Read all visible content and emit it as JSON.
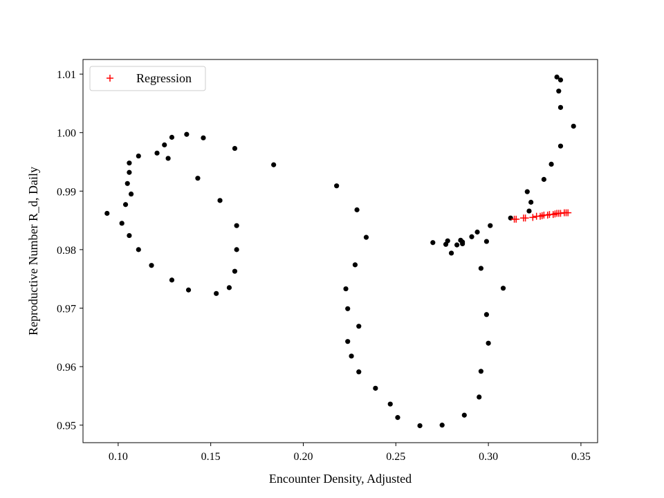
{
  "chart_data": {
    "type": "scatter",
    "title": "",
    "xlabel": "Encounter Density, Adjusted",
    "ylabel": "Reproductive Number R_d, Daily",
    "xlim": [
      0.081,
      0.359
    ],
    "ylim": [
      0.947,
      1.0125
    ],
    "xticks": [
      0.1,
      0.15,
      0.2,
      0.25,
      0.3,
      0.35
    ],
    "xtick_labels": [
      "0.10",
      "0.15",
      "0.20",
      "0.25",
      "0.30",
      "0.35"
    ],
    "yticks": [
      0.95,
      0.96,
      0.97,
      0.98,
      0.99,
      1.0,
      1.01
    ],
    "ytick_labels": [
      "0.95",
      "0.96",
      "0.97",
      "0.98",
      "0.99",
      "1.00",
      "1.01"
    ],
    "grid": false,
    "legend_position": "upper-left",
    "series": [
      {
        "marker": "dot",
        "color": "#000000",
        "points": [
          [
            0.094,
            0.9862
          ],
          [
            0.102,
            0.9845
          ],
          [
            0.104,
            0.9877
          ],
          [
            0.105,
            0.9913
          ],
          [
            0.106,
            0.9932
          ],
          [
            0.106,
            0.9948
          ],
          [
            0.106,
            0.9824
          ],
          [
            0.107,
            0.9895
          ],
          [
            0.111,
            0.996
          ],
          [
            0.111,
            0.98
          ],
          [
            0.118,
            0.9773
          ],
          [
            0.121,
            0.9965
          ],
          [
            0.125,
            0.9979
          ],
          [
            0.127,
            0.9956
          ],
          [
            0.129,
            0.9992
          ],
          [
            0.129,
            0.9748
          ],
          [
            0.137,
            0.9997
          ],
          [
            0.138,
            0.9731
          ],
          [
            0.143,
            0.9922
          ],
          [
            0.146,
            0.9991
          ],
          [
            0.153,
            0.9725
          ],
          [
            0.155,
            0.9884
          ],
          [
            0.16,
            0.9735
          ],
          [
            0.163,
            0.9973
          ],
          [
            0.163,
            0.9763
          ],
          [
            0.164,
            0.98
          ],
          [
            0.164,
            0.9841
          ],
          [
            0.184,
            0.9945
          ],
          [
            0.218,
            0.9909
          ],
          [
            0.223,
            0.9733
          ],
          [
            0.224,
            0.9699
          ],
          [
            0.224,
            0.9643
          ],
          [
            0.226,
            0.9618
          ],
          [
            0.228,
            0.9774
          ],
          [
            0.229,
            0.9868
          ],
          [
            0.23,
            0.9669
          ],
          [
            0.23,
            0.9591
          ],
          [
            0.234,
            0.9821
          ],
          [
            0.239,
            0.9563
          ],
          [
            0.247,
            0.9536
          ],
          [
            0.251,
            0.9513
          ],
          [
            0.263,
            0.9499
          ],
          [
            0.27,
            0.9812
          ],
          [
            0.275,
            0.95
          ],
          [
            0.277,
            0.9809
          ],
          [
            0.278,
            0.9815
          ],
          [
            0.28,
            0.9794
          ],
          [
            0.283,
            0.9808
          ],
          [
            0.285,
            0.9816
          ],
          [
            0.286,
            0.981
          ],
          [
            0.286,
            0.9813
          ],
          [
            0.287,
            0.9517
          ],
          [
            0.291,
            0.9822
          ],
          [
            0.294,
            0.983
          ],
          [
            0.295,
            0.9548
          ],
          [
            0.296,
            0.9768
          ],
          [
            0.296,
            0.9592
          ],
          [
            0.299,
            0.9814
          ],
          [
            0.299,
            0.9689
          ],
          [
            0.3,
            0.964
          ],
          [
            0.301,
            0.9841
          ],
          [
            0.308,
            0.9734
          ],
          [
            0.312,
            0.9854
          ],
          [
            0.321,
            0.9899
          ],
          [
            0.322,
            0.9866
          ],
          [
            0.323,
            0.9881
          ],
          [
            0.33,
            0.992
          ],
          [
            0.334,
            0.9946
          ],
          [
            0.337,
            1.0095
          ],
          [
            0.338,
            1.0071
          ],
          [
            0.339,
            1.009
          ],
          [
            0.339,
            1.0043
          ],
          [
            0.339,
            0.9977
          ],
          [
            0.346,
            1.0011
          ]
        ]
      },
      {
        "name": "Regression",
        "marker": "plus",
        "color": "#ff0000",
        "points": [
          [
            0.314,
            0.9852
          ],
          [
            0.315,
            0.9852
          ],
          [
            0.319,
            0.9854
          ],
          [
            0.32,
            0.9854
          ],
          [
            0.324,
            0.9855
          ],
          [
            0.326,
            0.9857
          ],
          [
            0.328,
            0.9857
          ],
          [
            0.329,
            0.9858
          ],
          [
            0.33,
            0.9859
          ],
          [
            0.332,
            0.9859
          ],
          [
            0.333,
            0.986
          ],
          [
            0.335,
            0.986
          ],
          [
            0.336,
            0.9861
          ],
          [
            0.337,
            0.9862
          ],
          [
            0.338,
            0.9862
          ],
          [
            0.339,
            0.9862
          ],
          [
            0.341,
            0.9863
          ],
          [
            0.342,
            0.9863
          ],
          [
            0.343,
            0.9863
          ]
        ]
      }
    ],
    "legend": [
      {
        "label": "Regression",
        "marker": "plus",
        "color": "#ff0000"
      }
    ]
  }
}
